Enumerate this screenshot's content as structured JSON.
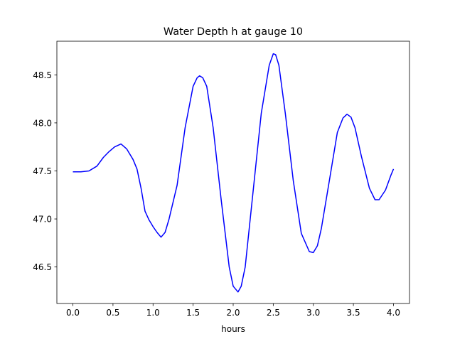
{
  "chart_data": {
    "type": "line",
    "title": "Water Depth h at gauge 10",
    "xlabel": "hours",
    "ylabel": "",
    "xlim": [
      -0.2,
      4.2
    ],
    "ylim": [
      46.12,
      48.85
    ],
    "xticks": [
      0.0,
      0.5,
      1.0,
      1.5,
      2.0,
      2.5,
      3.0,
      3.5,
      4.0
    ],
    "xtick_labels": [
      "0.0",
      "0.5",
      "1.0",
      "1.5",
      "2.0",
      "2.5",
      "3.0",
      "3.5",
      "4.0"
    ],
    "yticks": [
      46.5,
      47.0,
      47.5,
      48.0,
      48.5
    ],
    "ytick_labels": [
      "46.5",
      "47.0",
      "47.5",
      "48.0",
      "48.5"
    ],
    "grid": false,
    "series": [
      {
        "name": "h",
        "color": "#0000ff",
        "x": [
          0,
          0.1,
          0.2,
          0.3,
          0.38,
          0.45,
          0.52,
          0.6,
          0.67,
          0.75,
          0.8,
          0.85,
          0.9,
          0.95,
          1.0,
          1.05,
          1.1,
          1.15,
          1.2,
          1.3,
          1.4,
          1.5,
          1.55,
          1.58,
          1.62,
          1.67,
          1.75,
          1.85,
          1.95,
          2.0,
          2.06,
          2.1,
          2.15,
          2.25,
          2.35,
          2.45,
          2.5,
          2.53,
          2.57,
          2.65,
          2.75,
          2.85,
          2.95,
          3.0,
          3.05,
          3.1,
          3.2,
          3.3,
          3.37,
          3.42,
          3.47,
          3.52,
          3.6,
          3.7,
          3.77,
          3.82,
          3.9,
          3.97,
          4.0
        ],
        "y": [
          47.49,
          47.49,
          47.5,
          47.55,
          47.64,
          47.7,
          47.75,
          47.78,
          47.73,
          47.62,
          47.52,
          47.32,
          47.08,
          46.99,
          46.92,
          46.86,
          46.81,
          46.86,
          47.0,
          47.35,
          47.95,
          48.38,
          48.47,
          48.49,
          48.47,
          48.38,
          47.95,
          47.2,
          46.5,
          46.3,
          46.24,
          46.3,
          46.5,
          47.3,
          48.1,
          48.6,
          48.72,
          48.71,
          48.6,
          48.1,
          47.4,
          46.85,
          46.66,
          46.65,
          46.72,
          46.9,
          47.4,
          47.9,
          48.05,
          48.09,
          48.06,
          47.95,
          47.65,
          47.32,
          47.2,
          47.2,
          47.3,
          47.46,
          47.52
        ]
      }
    ]
  }
}
